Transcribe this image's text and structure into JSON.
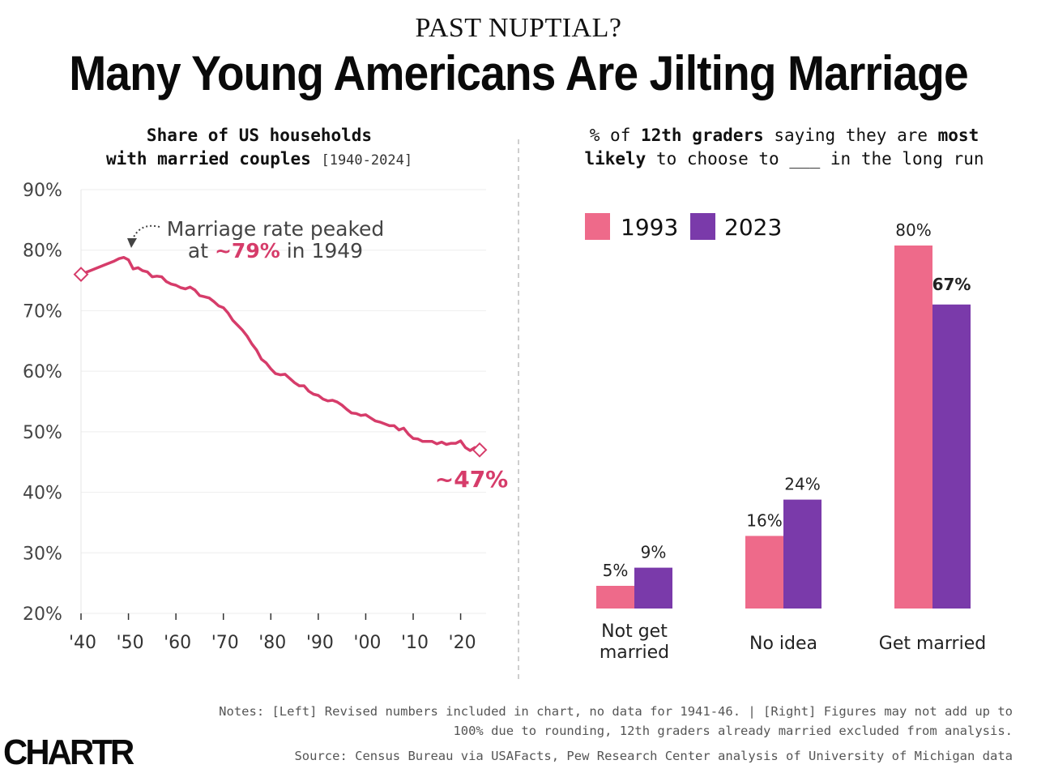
{
  "kicker": "PAST NUPTIAL?",
  "headline": "Many Young Americans Are Jilting Marriage",
  "logo": "CHARTR",
  "left_subtitle": {
    "line1": "Share of US households",
    "line2_bold": "with married couples",
    "range": "[1940-2024]"
  },
  "right_subtitle": {
    "p1": "% of ",
    "p2": "12th graders",
    "p3": " saying they are ",
    "p4": "most",
    "p5": "likely",
    "p6": " to choose to ___ in the long run"
  },
  "notes": "Notes: [Left] Revised numbers included in chart, no data for 1941-46. | [Right] Figures may not add up to 100% due to rounding, 12th graders already married excluded from analysis.",
  "source": "Source: Census Bureau via USAFacts, Pew Research Center analysis of University of Michigan data",
  "colors": {
    "pink": "#ee6a8a",
    "purple": "#7a3aaa",
    "line": "#d63c6a",
    "grid": "#eeeeee"
  },
  "chart_data": [
    {
      "type": "line",
      "ylim": [
        20,
        90
      ],
      "yticks": [
        "90%",
        "80%",
        "70%",
        "60%",
        "50%",
        "40%",
        "30%",
        "20%"
      ],
      "xlim": [
        1940,
        2024
      ],
      "xticks": [
        {
          "year": 1940,
          "label": "'40"
        },
        {
          "year": 1950,
          "label": "'50"
        },
        {
          "year": 1960,
          "label": "'60"
        },
        {
          "year": 1970,
          "label": "'70"
        },
        {
          "year": 1980,
          "label": "'80"
        },
        {
          "year": 1990,
          "label": "'90"
        },
        {
          "year": 2000,
          "label": "'00"
        },
        {
          "year": 2010,
          "label": "'10"
        },
        {
          "year": 2020,
          "label": "'20"
        }
      ],
      "x": [
        1940,
        1947,
        1948,
        1949,
        1950,
        1951,
        1952,
        1953,
        1954,
        1955,
        1956,
        1957,
        1958,
        1959,
        1960,
        1961,
        1962,
        1963,
        1964,
        1965,
        1966,
        1967,
        1968,
        1969,
        1970,
        1971,
        1972,
        1973,
        1974,
        1975,
        1976,
        1977,
        1978,
        1979,
        1980,
        1981,
        1982,
        1983,
        1984,
        1985,
        1986,
        1987,
        1988,
        1989,
        1990,
        1991,
        1992,
        1993,
        1994,
        1995,
        1996,
        1997,
        1998,
        1999,
        2000,
        2001,
        2002,
        2003,
        2004,
        2005,
        2006,
        2007,
        2008,
        2009,
        2010,
        2011,
        2012,
        2013,
        2014,
        2015,
        2016,
        2017,
        2018,
        2019,
        2020,
        2021,
        2022,
        2023,
        2024
      ],
      "y": [
        76,
        78.2,
        78.6,
        78.8,
        78.4,
        76.9,
        77.1,
        76.6,
        76.4,
        75.6,
        75.7,
        75.6,
        74.8,
        74.4,
        74.2,
        73.8,
        73.6,
        73.9,
        73.4,
        72.5,
        72.3,
        72.1,
        71.5,
        70.8,
        70.5,
        69.6,
        68.4,
        67.6,
        66.8,
        65.8,
        64.5,
        63.5,
        62.0,
        61.4,
        60.4,
        59.6,
        59.4,
        59.5,
        58.8,
        58.1,
        57.6,
        57.6,
        56.7,
        56.2,
        56.0,
        55.4,
        55.1,
        55.2,
        54.9,
        54.4,
        53.7,
        53.1,
        53.0,
        52.7,
        52.8,
        52.3,
        51.8,
        51.6,
        51.3,
        51.0,
        51.0,
        50.3,
        50.6,
        49.6,
        48.9,
        48.8,
        48.4,
        48.4,
        48.4,
        48.0,
        48.3,
        47.9,
        48.1,
        48.1,
        48.5,
        47.4,
        46.9,
        47.4,
        47
      ],
      "annotation": {
        "pre": "Marriage rate peaked",
        "l2a": "at ",
        "l2b": "~79%",
        "l2c": " in 1949"
      },
      "end_label": "~47%"
    },
    {
      "type": "bar",
      "categories": [
        "Not get married",
        "No idea",
        "Get married"
      ],
      "category_lines": [
        [
          "Not get",
          "married"
        ],
        [
          "No idea"
        ],
        [
          "Get married"
        ]
      ],
      "series": [
        {
          "name": "1993",
          "values": [
            5,
            16,
            80
          ],
          "labels": [
            "5%",
            "16%",
            "80%"
          ]
        },
        {
          "name": "2023",
          "values": [
            9,
            24,
            67
          ],
          "labels": [
            "9%",
            "24%",
            "67%"
          ]
        }
      ],
      "ylim": [
        0,
        80
      ]
    }
  ]
}
